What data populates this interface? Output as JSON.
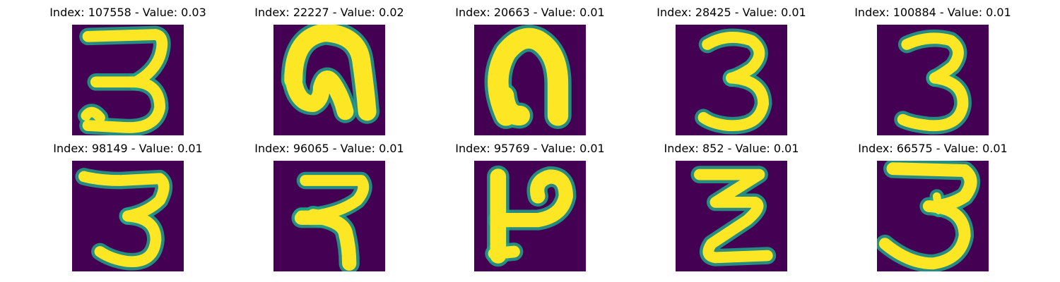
{
  "figure": {
    "background_color": "#440154",
    "stroke_color": "#fde725",
    "edge_color": "#21a38a",
    "panels": [
      {
        "title": "Index: 107558 - Value: 0.03",
        "glyph": "three-flat-top-long-tail"
      },
      {
        "title": "Index: 22227 - Value: 0.02",
        "glyph": "arch-with-loop-bold"
      },
      {
        "title": "Index: 20663 - Value: 0.01",
        "glyph": "arch-bold"
      },
      {
        "title": "Index: 28425 - Value: 0.01",
        "glyph": "three-round"
      },
      {
        "title": "Index: 100884 - Value: 0.01",
        "glyph": "three-round"
      },
      {
        "title": "Index: 98149 - Value: 0.01",
        "glyph": "three-flat-top"
      },
      {
        "title": "Index: 96065 - Value: 0.01",
        "glyph": "devanagari-ra"
      },
      {
        "title": "Index: 95769 - Value: 0.01",
        "glyph": "p-with-stem"
      },
      {
        "title": "Index: 852 - Value: 0.01",
        "glyph": "zigzag-z"
      },
      {
        "title": "Index: 66575 - Value: 0.01",
        "glyph": "three-wide-bottom"
      }
    ]
  }
}
